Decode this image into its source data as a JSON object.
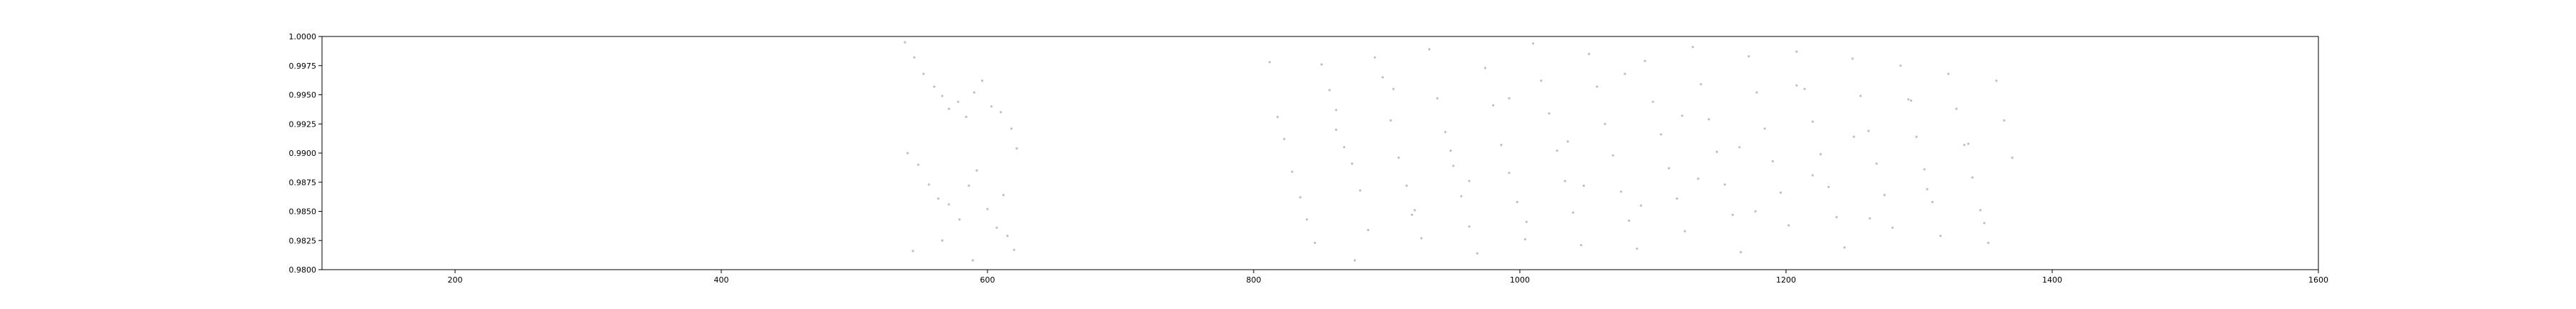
{
  "chart_data": {
    "type": "scatter",
    "title": "",
    "xlabel": "",
    "ylabel": "",
    "xlim": [
      100,
      1600
    ],
    "ylim": [
      0.98,
      1.0
    ],
    "grid": false,
    "xticks": [
      200,
      400,
      600,
      800,
      1000,
      1200,
      1400,
      1600
    ],
    "xtick_labels": [
      "200",
      "400",
      "600",
      "800",
      "1000",
      "1200",
      "1400",
      "1600"
    ],
    "yticks": [
      0.98,
      0.9825,
      0.985,
      0.9875,
      0.99,
      0.9925,
      0.995,
      0.9975,
      1.0
    ],
    "ytick_labels": [
      "0.9800",
      "0.9825",
      "0.9850",
      "0.9875",
      "0.9900",
      "0.9925",
      "0.9950",
      "0.9975",
      "1.0000"
    ],
    "marker_color": "#7f7f7f",
    "series": [
      {
        "points": [
          [
            538,
            0.9995
          ],
          [
            545,
            0.9982
          ],
          [
            552,
            0.9968
          ],
          [
            560,
            0.9957
          ],
          [
            566,
            0.9949
          ],
          [
            571,
            0.9938
          ],
          [
            578,
            0.9944
          ],
          [
            584,
            0.9931
          ],
          [
            590,
            0.9952
          ],
          [
            596,
            0.9962
          ],
          [
            603,
            0.994
          ],
          [
            610,
            0.9935
          ],
          [
            618,
            0.9921
          ],
          [
            622,
            0.9904
          ],
          [
            540,
            0.99
          ],
          [
            548,
            0.989
          ],
          [
            556,
            0.9873
          ],
          [
            563,
            0.9861
          ],
          [
            571,
            0.9856
          ],
          [
            579,
            0.9843
          ],
          [
            586,
            0.9872
          ],
          [
            592,
            0.9885
          ],
          [
            600,
            0.9852
          ],
          [
            607,
            0.9836
          ],
          [
            615,
            0.9829
          ],
          [
            620,
            0.9817
          ],
          [
            544,
            0.9816
          ],
          [
            566,
            0.9825
          ],
          [
            589,
            0.9808
          ],
          [
            612,
            0.9864
          ],
          [
            812,
            0.9978
          ],
          [
            818,
            0.9931
          ],
          [
            823,
            0.9912
          ],
          [
            829,
            0.9884
          ],
          [
            835,
            0.9862
          ],
          [
            840,
            0.9843
          ],
          [
            846,
            0.9823
          ],
          [
            851,
            0.9976
          ],
          [
            857,
            0.9954
          ],
          [
            862,
            0.9937
          ],
          [
            868,
            0.9905
          ],
          [
            874,
            0.9891
          ],
          [
            880,
            0.9868
          ],
          [
            886,
            0.9834
          ],
          [
            891,
            0.9982
          ],
          [
            897,
            0.9965
          ],
          [
            903,
            0.9928
          ],
          [
            909,
            0.9896
          ],
          [
            915,
            0.9872
          ],
          [
            921,
            0.9851
          ],
          [
            926,
            0.9827
          ],
          [
            932,
            0.9989
          ],
          [
            938,
            0.9947
          ],
          [
            944,
            0.9918
          ],
          [
            950,
            0.9889
          ],
          [
            956,
            0.9863
          ],
          [
            962,
            0.9837
          ],
          [
            968,
            0.9814
          ],
          [
            974,
            0.9973
          ],
          [
            980,
            0.9941
          ],
          [
            986,
            0.9907
          ],
          [
            992,
            0.9883
          ],
          [
            998,
            0.9858
          ],
          [
            1004,
            0.9826
          ],
          [
            1010,
            0.9994
          ],
          [
            1016,
            0.9962
          ],
          [
            1022,
            0.9934
          ],
          [
            1028,
            0.9902
          ],
          [
            1034,
            0.9876
          ],
          [
            1040,
            0.9849
          ],
          [
            1046,
            0.9821
          ],
          [
            1052,
            0.9985
          ],
          [
            1058,
            0.9957
          ],
          [
            1064,
            0.9925
          ],
          [
            1070,
            0.9898
          ],
          [
            1076,
            0.9867
          ],
          [
            1082,
            0.9842
          ],
          [
            1088,
            0.9818
          ],
          [
            1094,
            0.9979
          ],
          [
            1100,
            0.9944
          ],
          [
            1106,
            0.9916
          ],
          [
            1112,
            0.9887
          ],
          [
            1118,
            0.9861
          ],
          [
            1124,
            0.9833
          ],
          [
            1130,
            0.9991
          ],
          [
            1136,
            0.9959
          ],
          [
            1142,
            0.9929
          ],
          [
            1148,
            0.9901
          ],
          [
            1154,
            0.9873
          ],
          [
            1160,
            0.9847
          ],
          [
            1166,
            0.9815
          ],
          [
            1172,
            0.9983
          ],
          [
            1178,
            0.9952
          ],
          [
            1184,
            0.9921
          ],
          [
            1190,
            0.9893
          ],
          [
            1196,
            0.9866
          ],
          [
            1202,
            0.9838
          ],
          [
            1208,
            0.9987
          ],
          [
            1214,
            0.9955
          ],
          [
            1220,
            0.9927
          ],
          [
            1226,
            0.9899
          ],
          [
            1232,
            0.9871
          ],
          [
            1238,
            0.9845
          ],
          [
            1244,
            0.9819
          ],
          [
            1250,
            0.9981
          ],
          [
            1256,
            0.9949
          ],
          [
            1262,
            0.9919
          ],
          [
            1268,
            0.9891
          ],
          [
            1274,
            0.9864
          ],
          [
            1280,
            0.9836
          ],
          [
            1286,
            0.9975
          ],
          [
            1292,
            0.9946
          ],
          [
            1298,
            0.9914
          ],
          [
            1304,
            0.9886
          ],
          [
            1310,
            0.9858
          ],
          [
            1316,
            0.9829
          ],
          [
            1322,
            0.9968
          ],
          [
            1328,
            0.9938
          ],
          [
            1334,
            0.9907
          ],
          [
            1340,
            0.9879
          ],
          [
            1346,
            0.9851
          ],
          [
            1352,
            0.9823
          ],
          [
            1358,
            0.9962
          ],
          [
            1364,
            0.9928
          ],
          [
            1370,
            0.9896
          ],
          [
            862,
            0.992
          ],
          [
            905,
            0.9955
          ],
          [
            948,
            0.9902
          ],
          [
            992,
            0.9947
          ],
          [
            1036,
            0.991
          ],
          [
            1079,
            0.9968
          ],
          [
            1122,
            0.9932
          ],
          [
            1165,
            0.9905
          ],
          [
            1208,
            0.9958
          ],
          [
            1251,
            0.9914
          ],
          [
            1294,
            0.9945
          ],
          [
            1337,
            0.9908
          ],
          [
            876,
            0.9808
          ],
          [
            919,
            0.9847
          ],
          [
            962,
            0.9876
          ],
          [
            1005,
            0.9841
          ],
          [
            1048,
            0.9872
          ],
          [
            1091,
            0.9855
          ],
          [
            1134,
            0.9878
          ],
          [
            1177,
            0.985
          ],
          [
            1220,
            0.9881
          ],
          [
            1263,
            0.9844
          ],
          [
            1306,
            0.9869
          ],
          [
            1349,
            0.984
          ]
        ]
      }
    ]
  }
}
